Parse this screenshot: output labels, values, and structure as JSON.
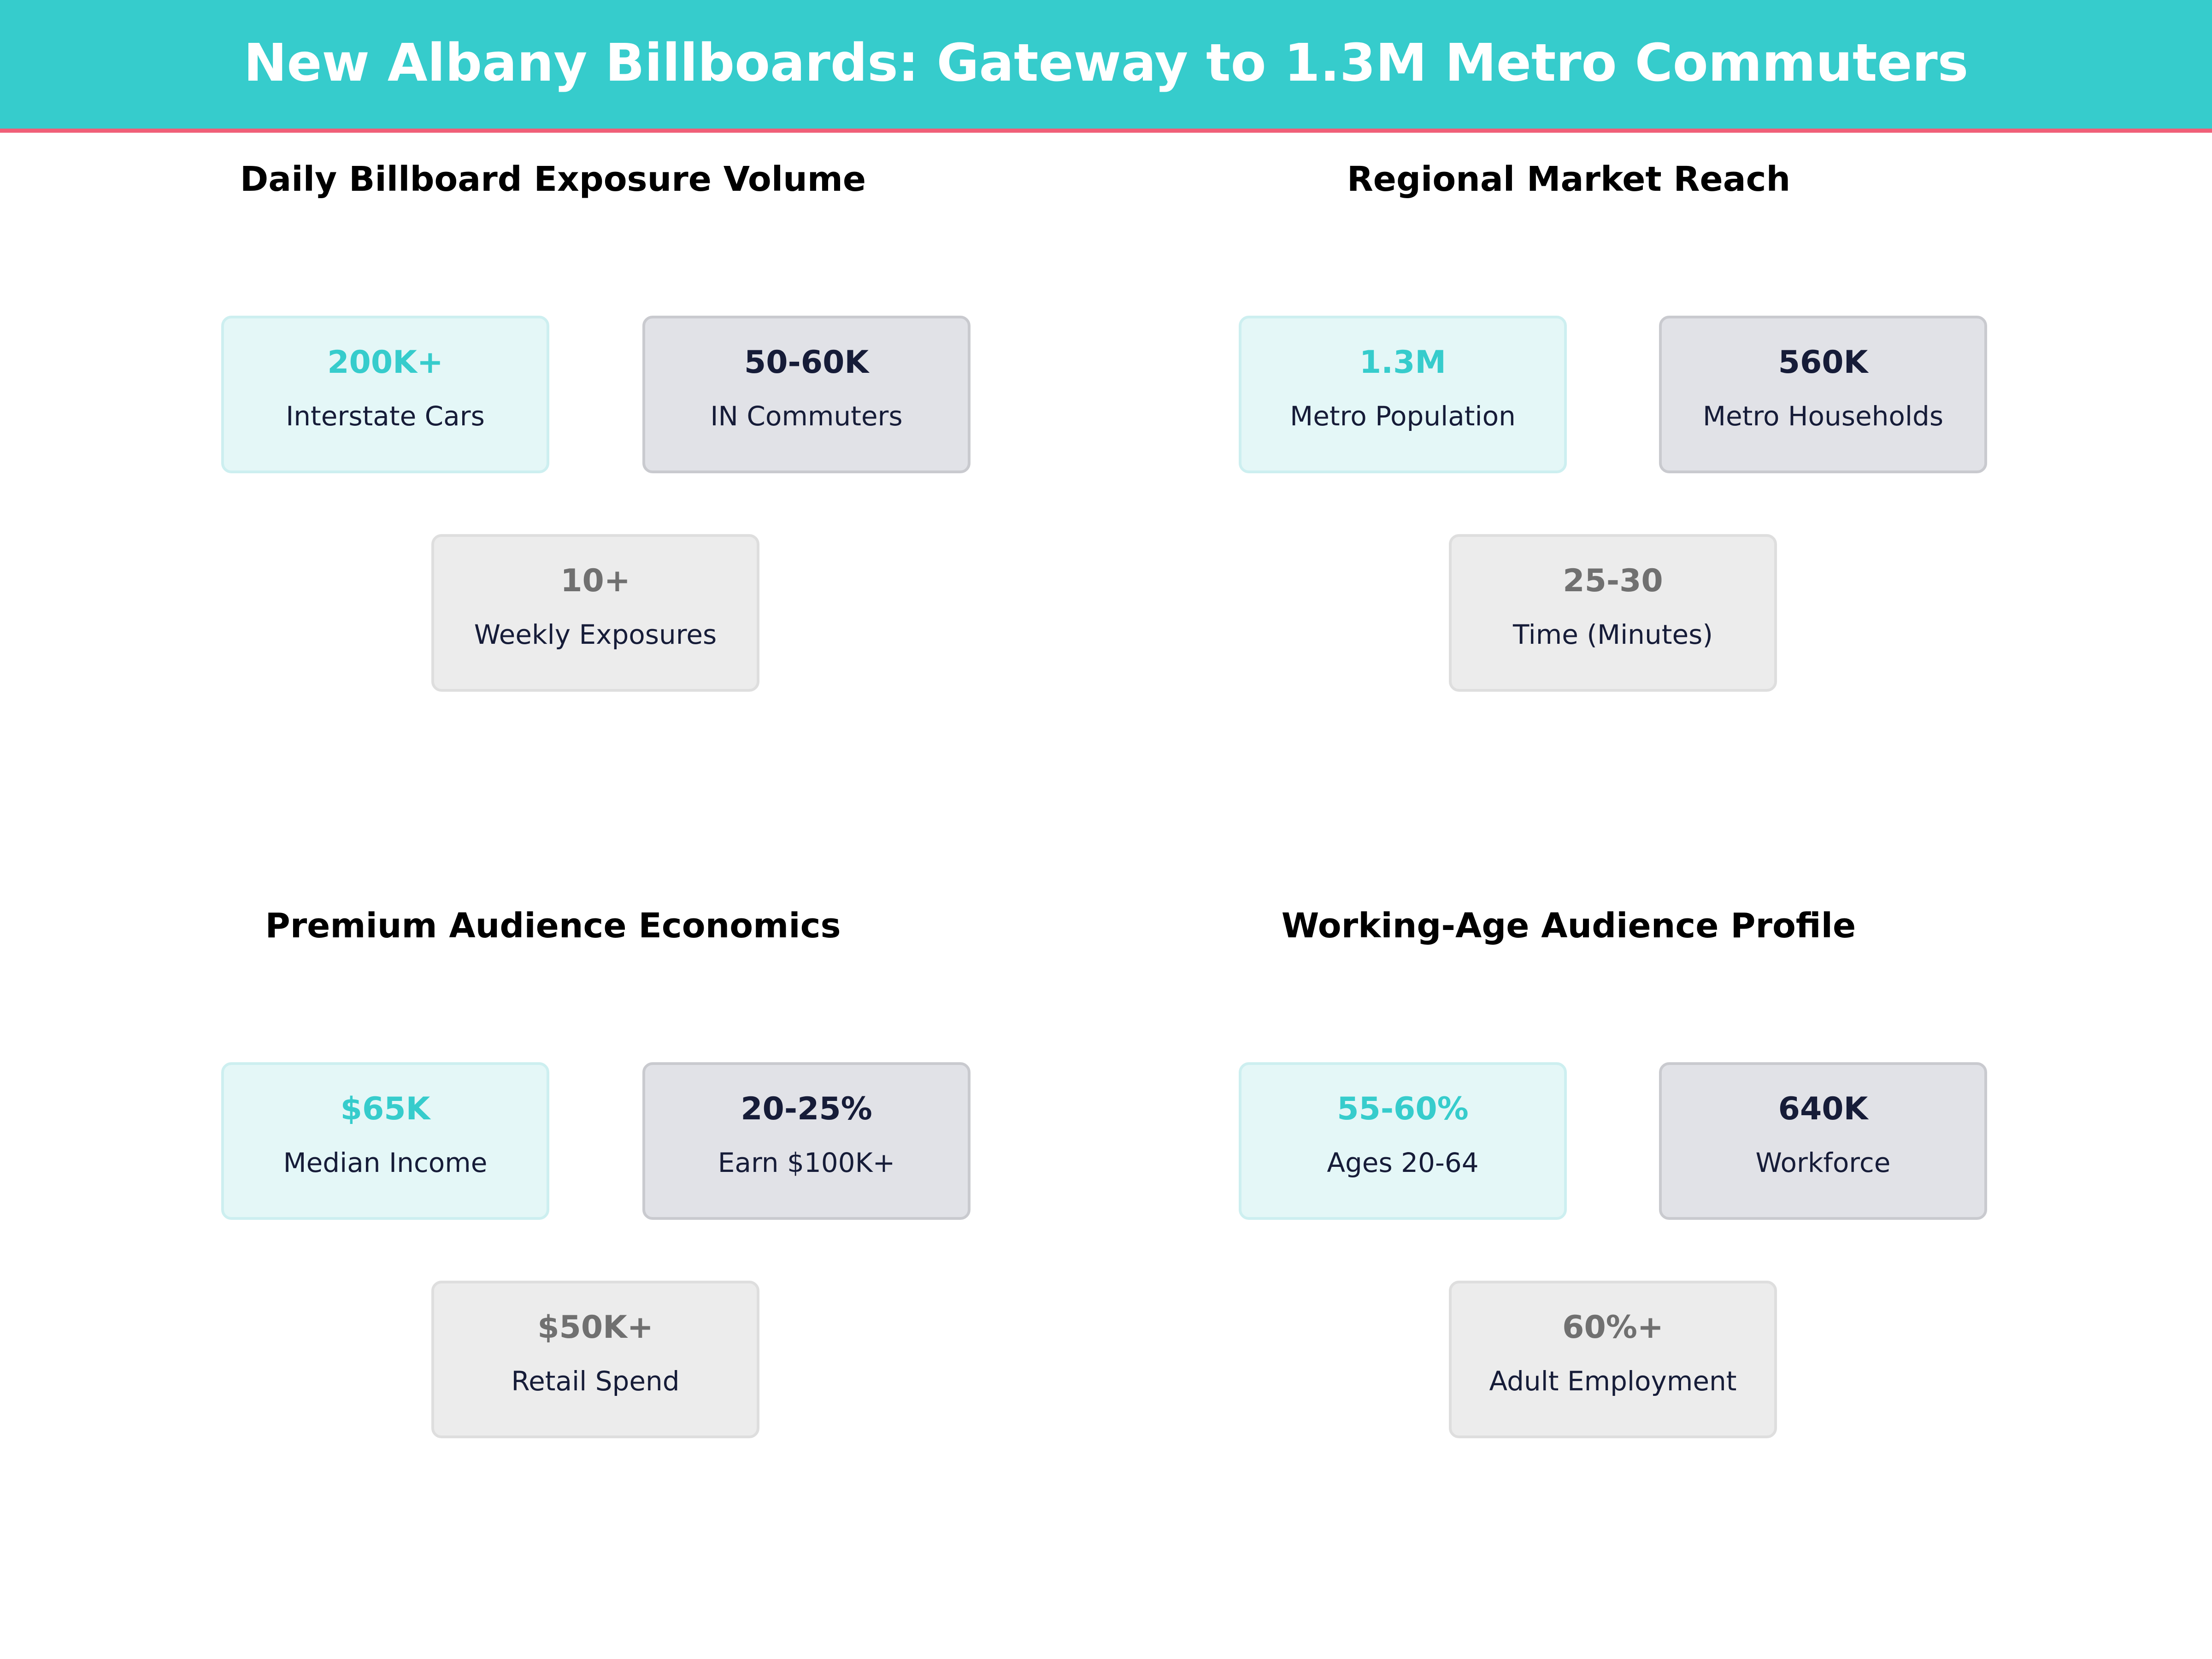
{
  "header": {
    "title": "New Albany Billboards: Gateway to 1.3M Metro Commuters"
  },
  "colors": {
    "header_bg": "#36CCCC",
    "header_border": "#F05F78",
    "accent_teal": "#36CCCC",
    "navy": "#161C38",
    "gray_value": "#707070"
  },
  "sections": [
    {
      "title": "Daily Billboard Exposure Volume",
      "cards": [
        {
          "value": "200K+",
          "label": "Interstate Cars",
          "style": "teal"
        },
        {
          "value": "50-60K",
          "label": "IN Commuters",
          "style": "navy"
        },
        {
          "value": "10+",
          "label": "Weekly Exposures",
          "style": "gray"
        }
      ]
    },
    {
      "title": "Regional Market Reach",
      "cards": [
        {
          "value": "1.3M",
          "label": "Metro Population",
          "style": "teal"
        },
        {
          "value": "560K",
          "label": "Metro Households",
          "style": "navy"
        },
        {
          "value": "25-30",
          "label": "Time (Minutes)",
          "style": "gray"
        }
      ]
    },
    {
      "title": "Premium Audience Economics",
      "cards": [
        {
          "value": "$65K",
          "label": "Median Income",
          "style": "teal"
        },
        {
          "value": "20-25%",
          "label": "Earn $100K+",
          "style": "navy"
        },
        {
          "value": "$50K+",
          "label": "Retail Spend",
          "style": "gray"
        }
      ]
    },
    {
      "title": "Working-Age Audience Profile",
      "cards": [
        {
          "value": "55-60%",
          "label": "Ages 20-64",
          "style": "teal"
        },
        {
          "value": "640K",
          "label": "Workforce",
          "style": "navy"
        },
        {
          "value": "60%+",
          "label": "Adult Employment",
          "style": "gray"
        }
      ]
    }
  ]
}
